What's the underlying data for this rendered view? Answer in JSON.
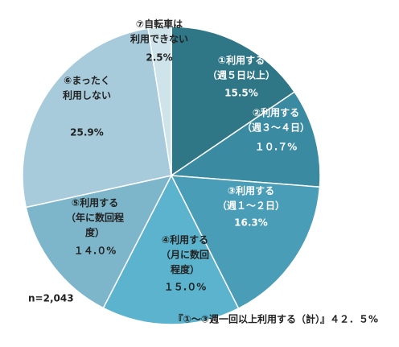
{
  "chart_data": {
    "type": "pie",
    "categories": [
      "①利用する\n（週５日以上）",
      "②利用する\n（週３～４日）",
      "③利用する\n（週１～２日）",
      "④利用する\n（月に数回\n程度）",
      "⑤利用する\n（年に数回程\n度）",
      "⑥まったく\n利用しない",
      "⑦自転車は\n利用できない"
    ],
    "values": [
      15.5,
      10.7,
      16.3,
      15.0,
      14.0,
      25.9,
      2.5
    ],
    "value_labels": [
      "15.5%",
      "１０.７%",
      "16.3%",
      "１５.０%",
      "１４.０%",
      "25.9%",
      "2.5%"
    ],
    "colors": [
      "#2f7687",
      "#3a8aa1",
      "#4a9db6",
      "#5cb3cd",
      "#7db6ca",
      "#a7cbdb",
      "#cfe3ea"
    ],
    "note": "n=2,043",
    "footnote": "『①～③週一回以上利用する（計）』４２．５%"
  }
}
